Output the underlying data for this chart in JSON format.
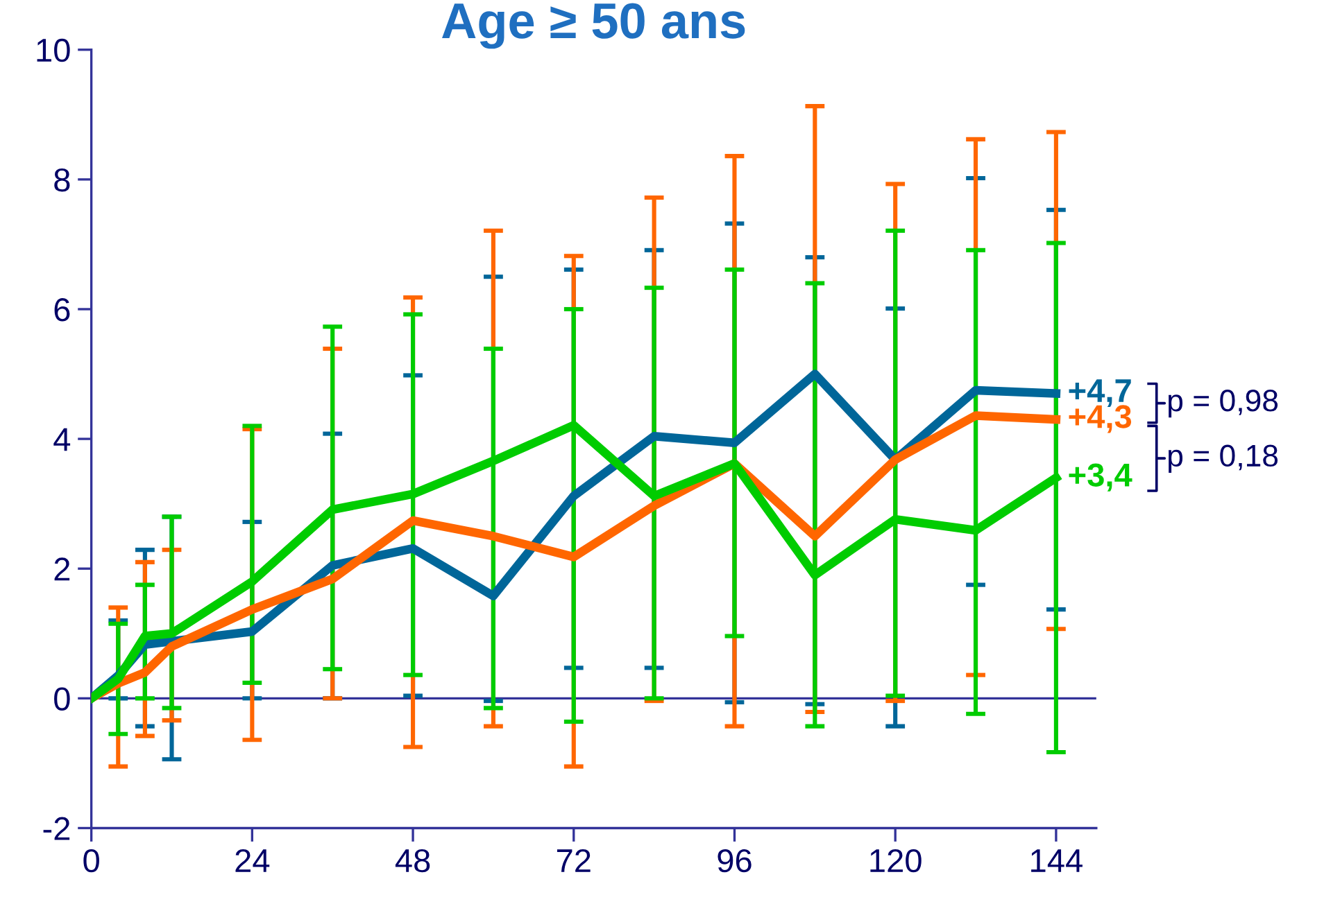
{
  "chart_data": {
    "type": "line",
    "title": "Age ≥ 50 ans",
    "x": [
      0,
      4,
      8,
      12,
      24,
      36,
      48,
      60,
      72,
      84,
      96,
      108,
      120,
      132,
      144
    ],
    "series": [
      {
        "color": "#006699",
        "values": [
          0,
          0.35,
          0.83,
          0.88,
          1.03,
          2.05,
          2.31,
          1.58,
          3.12,
          4.04,
          3.94,
          5.0,
          3.68,
          4.75,
          4.7
        ],
        "errors": [
          null,
          [
            0,
            1.2
          ],
          [
            -0.43,
            2.29
          ],
          [
            -0.94,
            2.8
          ],
          [
            0,
            2.72
          ],
          [
            0,
            4.08
          ],
          [
            0.04,
            4.98
          ],
          [
            -0.04,
            6.5
          ],
          [
            0.47,
            6.61
          ],
          [
            0.47,
            6.91
          ],
          [
            -0.06,
            7.32
          ],
          [
            -0.09,
            6.8
          ],
          [
            -0.43,
            6.01
          ],
          [
            1.75,
            8.02
          ],
          [
            1.37,
            7.53
          ]
        ]
      },
      {
        "color": "#ff6600",
        "values": [
          0,
          0.23,
          0.4,
          0.8,
          1.37,
          1.84,
          2.74,
          2.5,
          2.18,
          2.97,
          3.62,
          2.5,
          3.68,
          4.36,
          4.3
        ],
        "errors": [
          null,
          [
            -1.05,
            1.4
          ],
          [
            -0.58,
            2.1
          ],
          [
            -0.34,
            2.29
          ],
          [
            -0.64,
            4.15
          ],
          [
            0,
            5.39
          ],
          [
            -0.75,
            6.18
          ],
          [
            -0.43,
            7.21
          ],
          [
            -1.05,
            6.82
          ],
          [
            -0.04,
            7.72
          ],
          [
            -0.43,
            8.36
          ],
          [
            -0.21,
            9.13
          ],
          [
            -0.04,
            7.93
          ],
          [
            0.36,
            8.62
          ],
          [
            1.07,
            8.73
          ]
        ]
      },
      {
        "color": "#00cc00",
        "values": [
          0,
          0.3,
          0.96,
          1.0,
          1.8,
          2.91,
          3.15,
          3.66,
          4.21,
          3.12,
          3.62,
          1.9,
          2.76,
          2.59,
          3.4
        ],
        "errors": [
          null,
          [
            -0.55,
            1.15
          ],
          [
            0,
            1.75
          ],
          [
            -0.15,
            2.8
          ],
          [
            0.24,
            4.2
          ],
          [
            0.45,
            5.73
          ],
          [
            0.36,
            5.92
          ],
          [
            -0.15,
            5.39
          ],
          [
            -0.36,
            6.0
          ],
          [
            0,
            6.33
          ],
          [
            0.96,
            6.61
          ],
          [
            -0.43,
            6.4
          ],
          [
            0.04,
            7.21
          ],
          [
            -0.24,
            6.91
          ],
          [
            -0.83,
            7.02
          ]
        ]
      }
    ],
    "xlim": [
      0,
      150
    ],
    "xticks": [
      0,
      24,
      48,
      72,
      96,
      120,
      144
    ],
    "ylim": [
      -2,
      10
    ],
    "yticks": [
      -2,
      0,
      2,
      4,
      6,
      8,
      10
    ],
    "ref_lines": [
      {
        "axis": "y",
        "value": 0,
        "color": "#333399"
      }
    ],
    "grid": false,
    "marker": "none",
    "line_style": "solid",
    "annotations": [
      "+4,7",
      "+4,3",
      "+3,4",
      "p = 0,98",
      "p = 0,18"
    ]
  }
}
